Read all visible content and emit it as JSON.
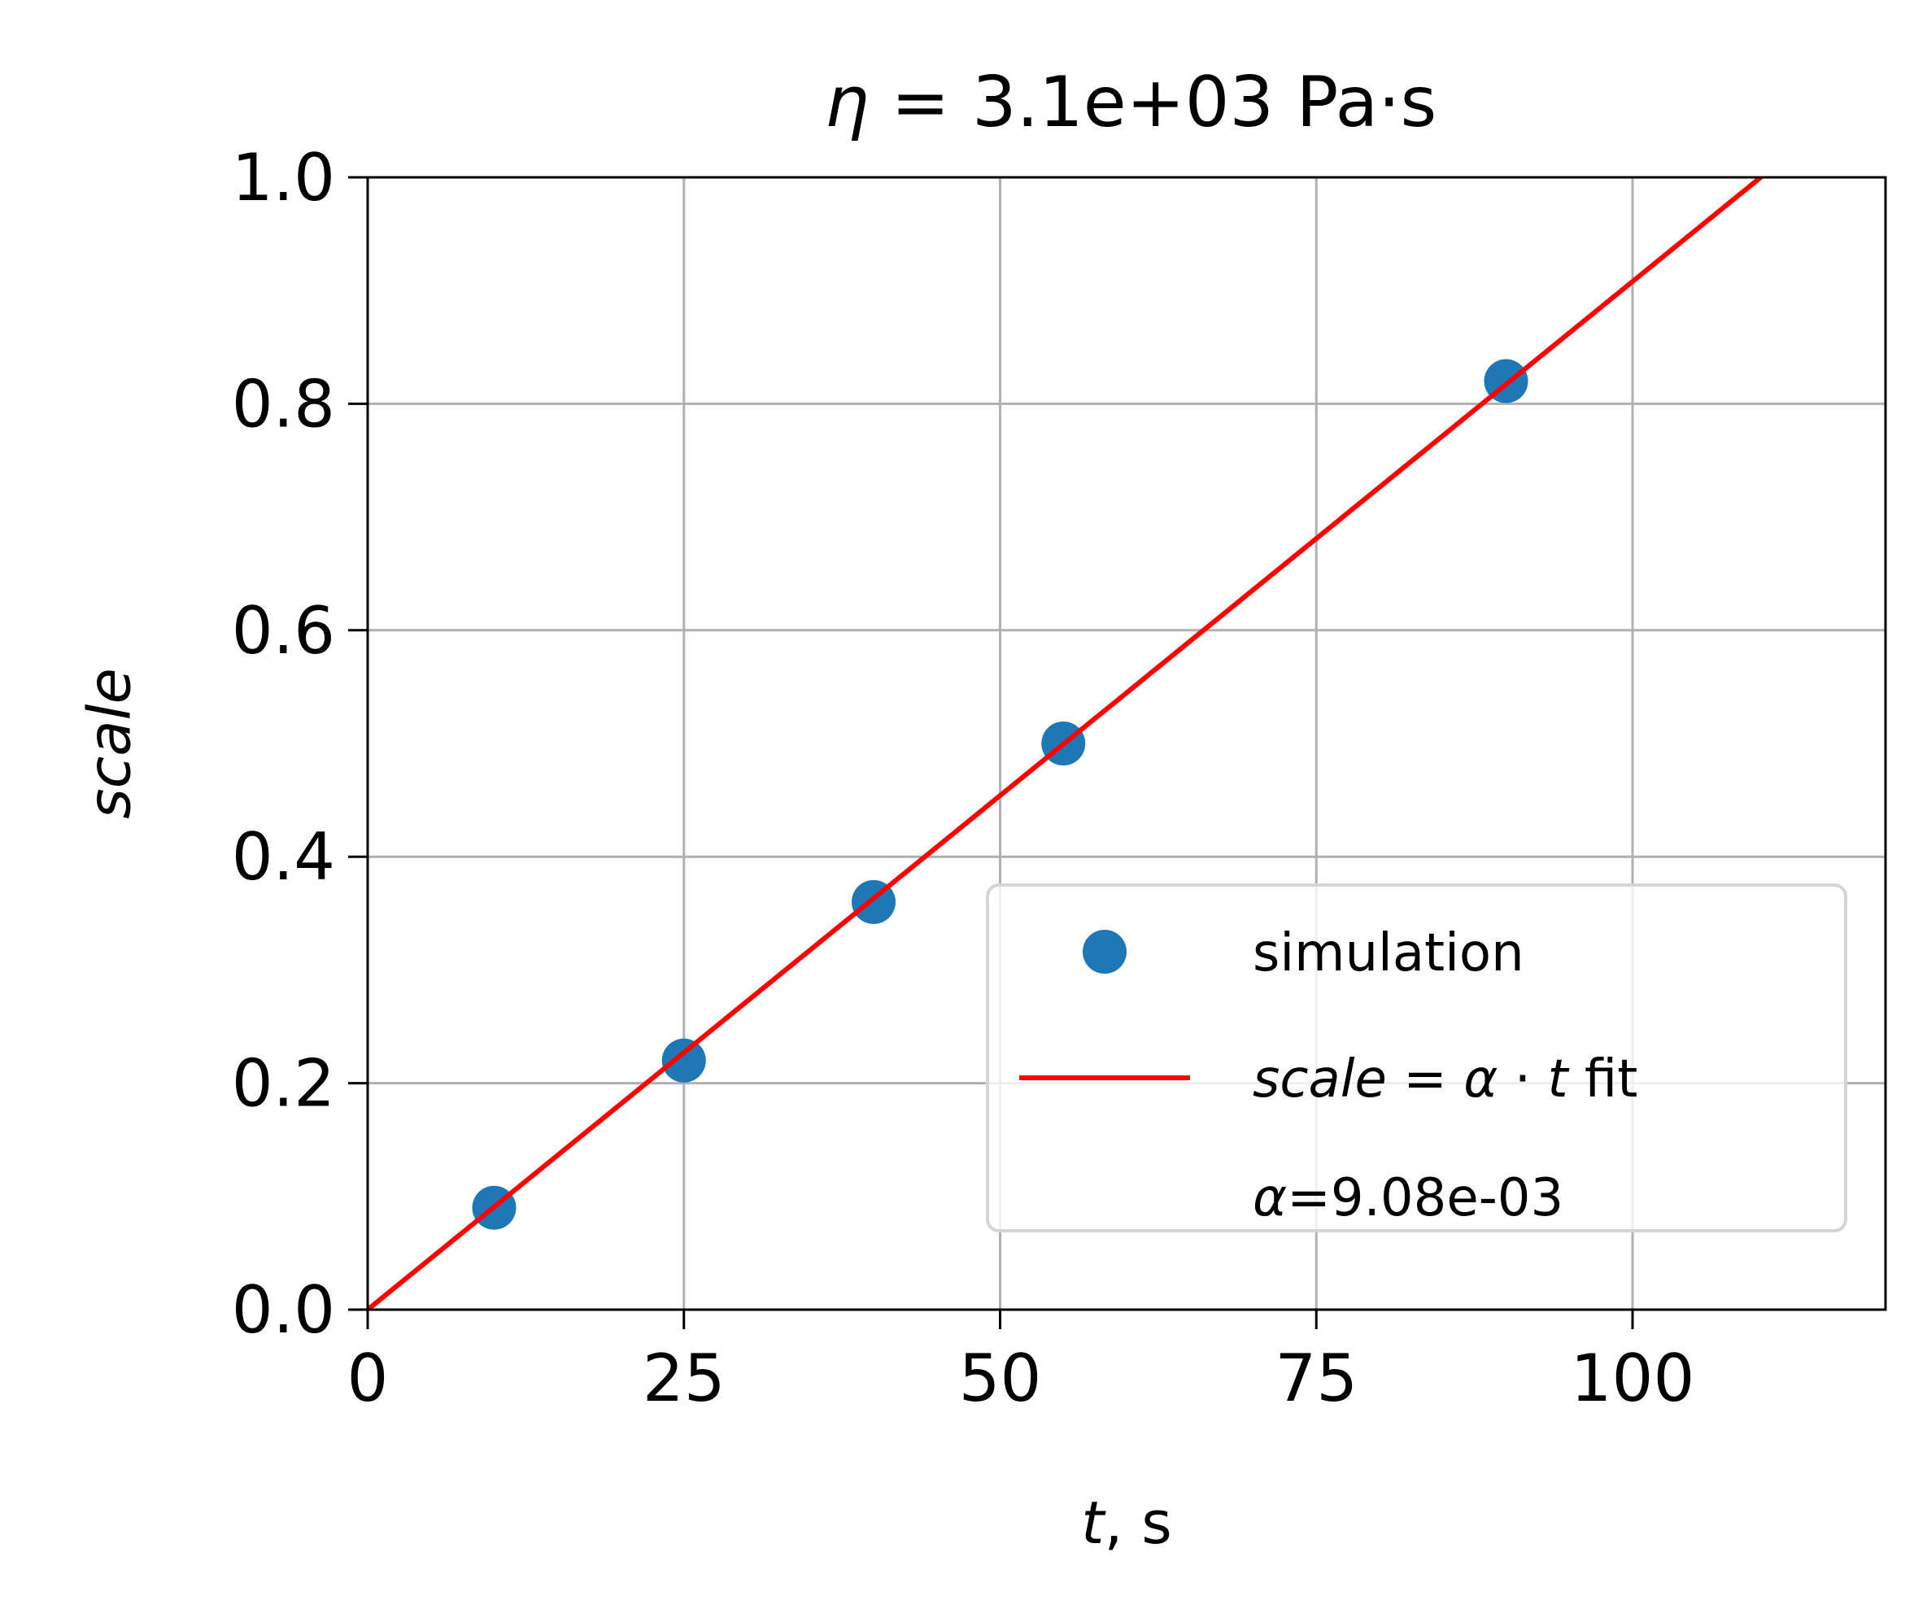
{
  "chart_data": {
    "type": "scatter",
    "title": "η = 3.1e+03 Pa·s",
    "xlabel": "t, s",
    "ylabel": "scale",
    "xlim": [
      0,
      120
    ],
    "ylim": [
      0,
      1.0
    ],
    "xticks": [
      "0",
      "25",
      "50",
      "75",
      "100"
    ],
    "yticks": [
      "0.0",
      "0.2",
      "0.4",
      "0.6",
      "0.8",
      "1.0"
    ],
    "grid": true,
    "legend_position": "lower-right",
    "series": [
      {
        "name": "simulation",
        "kind": "scatter",
        "color": "#1f77b4",
        "x": [
          10,
          25,
          40,
          55,
          90
        ],
        "y": [
          0.09,
          0.22,
          0.36,
          0.5,
          0.82
        ]
      },
      {
        "name": "scale = α · t fit",
        "kind": "line",
        "color": "#ff0000",
        "slope": 0.00908,
        "x": [
          0,
          120
        ],
        "y": [
          0,
          1.0896
        ]
      }
    ],
    "legend_entries": [
      "simulation",
      "scale = α · t fit",
      "α=9.08e-03"
    ],
    "annotation": "α=9.08e-03"
  }
}
